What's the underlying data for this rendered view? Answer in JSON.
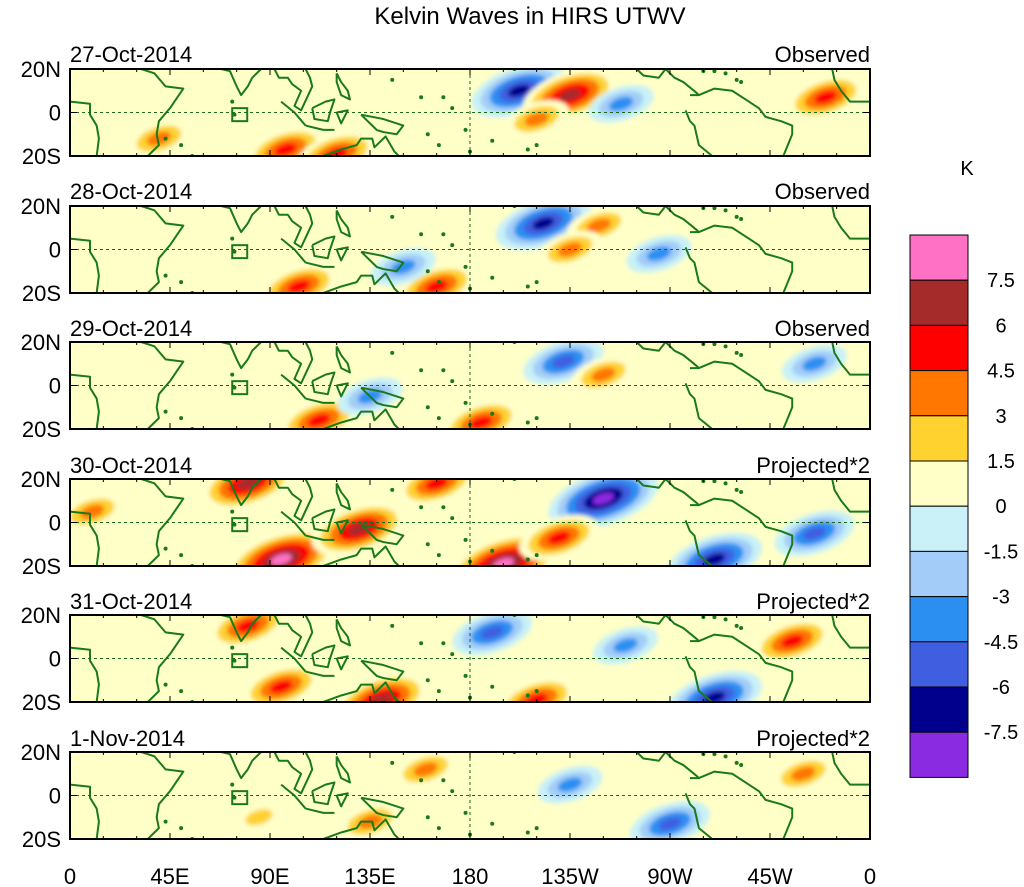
{
  "title": "Kelvin Waves in HIRS UTWV",
  "colorbar": {
    "unit": "K",
    "labels": [
      "7.5",
      "6",
      "4.5",
      "3",
      "1.5",
      "0",
      "-1.5",
      "-3",
      "-4.5",
      "-6",
      "-7.5"
    ],
    "colors": [
      "#ff71c4",
      "#a52a2a",
      "#ff0000",
      "#ff7700",
      "#ffd230",
      "#ffffc8",
      "#c9f1f7",
      "#a3cdf8",
      "#2b8ff2",
      "#3f5ee0",
      "#00008d",
      "#8a2be2"
    ]
  },
  "lat_labels": [
    "20N",
    "0",
    "20S"
  ],
  "lon_labels": [
    "0",
    "45E",
    "90E",
    "135E",
    "180",
    "135W",
    "90W",
    "45W",
    "0"
  ],
  "panels": [
    {
      "date": "27-Oct-2014",
      "kind": "Observed",
      "anomalies": [
        {
          "lon": 202,
          "lat": 10,
          "value": -6
        },
        {
          "lon": 225,
          "lat": 8,
          "value": 6
        },
        {
          "lon": 210,
          "lat": -3,
          "value": 3
        },
        {
          "lon": 97,
          "lat": -17,
          "value": 4.5
        },
        {
          "lon": 120,
          "lat": -19,
          "value": 4.5
        },
        {
          "lon": 248,
          "lat": 4,
          "value": -3
        },
        {
          "lon": 340,
          "lat": 7,
          "value": 4.5
        },
        {
          "lon": 40,
          "lat": -12,
          "value": 3
        }
      ]
    },
    {
      "date": "28-Oct-2014",
      "kind": "Observed",
      "anomalies": [
        {
          "lon": 213,
          "lat": 12,
          "value": -6
        },
        {
          "lon": 238,
          "lat": 11,
          "value": 3
        },
        {
          "lon": 225,
          "lat": 0,
          "value": 3
        },
        {
          "lon": 103,
          "lat": -17,
          "value": 4.5
        },
        {
          "lon": 165,
          "lat": -17,
          "value": 4.5
        },
        {
          "lon": 150,
          "lat": -8,
          "value": -3
        },
        {
          "lon": 265,
          "lat": -2,
          "value": -3
        }
      ]
    },
    {
      "date": "29-Oct-2014",
      "kind": "Observed",
      "anomalies": [
        {
          "lon": 222,
          "lat": 11,
          "value": -4.5
        },
        {
          "lon": 240,
          "lat": 5,
          "value": 3
        },
        {
          "lon": 112,
          "lat": -16,
          "value": 4.5
        },
        {
          "lon": 185,
          "lat": -17,
          "value": 4.5
        },
        {
          "lon": 135,
          "lat": -5,
          "value": -3
        },
        {
          "lon": 335,
          "lat": 10,
          "value": -3
        }
      ]
    },
    {
      "date": "30-Oct-2014",
      "kind": "Projected*2",
      "anomalies": [
        {
          "lon": 240,
          "lat": 11,
          "value": -7.5
        },
        {
          "lon": 95,
          "lat": -17,
          "value": 7.5
        },
        {
          "lon": 195,
          "lat": -19,
          "value": 7.5
        },
        {
          "lon": 80,
          "lat": 18,
          "value": 6
        },
        {
          "lon": 165,
          "lat": 18,
          "value": 4.5
        },
        {
          "lon": 130,
          "lat": -3,
          "value": 6
        },
        {
          "lon": 290,
          "lat": -17,
          "value": -6
        },
        {
          "lon": 335,
          "lat": -5,
          "value": -4.5
        },
        {
          "lon": 220,
          "lat": -7,
          "value": 4.5
        },
        {
          "lon": 10,
          "lat": 5,
          "value": 3
        }
      ]
    },
    {
      "date": "31-Oct-2014",
      "kind": "Projected*2",
      "anomalies": [
        {
          "lon": 190,
          "lat": 12,
          "value": -4.5
        },
        {
          "lon": 95,
          "lat": -13,
          "value": 4.5
        },
        {
          "lon": 140,
          "lat": -19,
          "value": 6
        },
        {
          "lon": 80,
          "lat": 15,
          "value": 4.5
        },
        {
          "lon": 210,
          "lat": -19,
          "value": 4.5
        },
        {
          "lon": 290,
          "lat": -18,
          "value": -6
        },
        {
          "lon": 325,
          "lat": 8,
          "value": 4.5
        },
        {
          "lon": 250,
          "lat": 6,
          "value": -3
        }
      ]
    },
    {
      "date": "1-Nov-2014",
      "kind": "Projected*2",
      "anomalies": [
        {
          "lon": 160,
          "lat": 12,
          "value": 3
        },
        {
          "lon": 135,
          "lat": -12,
          "value": 3
        },
        {
          "lon": 225,
          "lat": 5,
          "value": -3
        },
        {
          "lon": 270,
          "lat": -13,
          "value": -4.5
        },
        {
          "lon": 330,
          "lat": 10,
          "value": 3
        },
        {
          "lon": 85,
          "lat": -10,
          "value": 1.5
        }
      ]
    }
  ]
}
